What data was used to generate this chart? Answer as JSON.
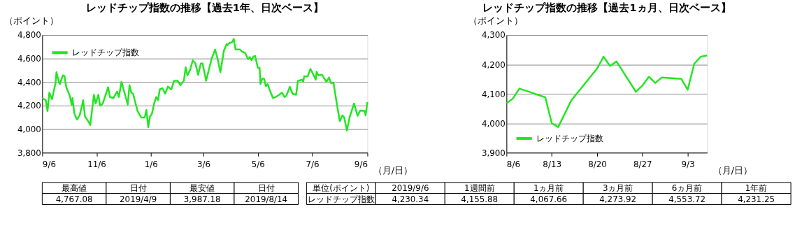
{
  "chart_data": [
    {
      "type": "line",
      "title": "レッドチップ指数の推移【過去1年、日次ベース】",
      "xlabel": "（月/日）",
      "ylabel": "（ポイント）",
      "legend": "top left",
      "grid": "y",
      "xlim": [
        "2018-09-06",
        "2019-09-06"
      ],
      "xticks": [
        {
          "value": "2018-09-06",
          "label": "9/6"
        },
        {
          "value": "2018-11-06",
          "label": "11/6"
        },
        {
          "value": "2019-01-06",
          "label": "1/6"
        },
        {
          "value": "2019-03-06",
          "label": "3/6"
        },
        {
          "value": "2019-05-06",
          "label": "5/6"
        },
        {
          "value": "2019-07-06",
          "label": "7/6"
        },
        {
          "value": "2019-09-06",
          "label": "9/6"
        }
      ],
      "ylim": [
        3800,
        4800
      ],
      "yticks": [
        {
          "value": 3800,
          "label": "3,800"
        },
        {
          "value": 4000,
          "label": "4,000"
        },
        {
          "value": 4200,
          "label": "4,200"
        },
        {
          "value": 4400,
          "label": "4,400"
        },
        {
          "value": 4600,
          "label": "4,600"
        },
        {
          "value": 4800,
          "label": "4,800"
        }
      ],
      "series": [
        {
          "name": "レッドチップ指数",
          "color": "#22e622",
          "x": [
            "2018-09-06",
            "2018-09-10",
            "2018-09-12",
            "2018-09-14",
            "2018-09-17",
            "2018-09-21",
            "2018-09-22",
            "2018-09-25",
            "2018-09-26",
            "2018-09-29",
            "2018-10-01",
            "2018-10-03",
            "2018-10-07",
            "2018-10-09",
            "2018-10-10",
            "2018-10-12",
            "2018-10-15",
            "2018-10-18",
            "2018-10-22",
            "2018-10-24",
            "2018-10-28",
            "2018-10-30",
            "2018-11-03",
            "2018-11-05",
            "2018-11-08",
            "2018-11-10",
            "2018-11-13",
            "2018-11-19",
            "2018-11-21",
            "2018-11-25",
            "2018-11-29",
            "2018-12-01",
            "2018-12-04",
            "2018-12-08",
            "2018-12-11",
            "2018-12-13",
            "2018-12-15",
            "2018-12-17",
            "2018-12-22",
            "2018-12-26",
            "2018-12-30",
            "2019-01-01",
            "2019-01-03",
            "2019-01-05",
            "2019-01-07",
            "2019-01-10",
            "2019-01-12",
            "2019-01-14",
            "2019-01-16",
            "2019-01-19",
            "2019-01-22",
            "2019-01-25",
            "2019-01-29",
            "2019-02-01",
            "2019-02-05",
            "2019-02-08",
            "2019-02-12",
            "2019-02-14",
            "2019-02-16",
            "2019-02-19",
            "2019-02-22",
            "2019-02-25",
            "2019-02-28",
            "2019-03-03",
            "2019-03-05",
            "2019-03-09",
            "2019-03-12",
            "2019-03-15",
            "2019-03-19",
            "2019-03-22",
            "2019-03-25",
            "2019-03-29",
            "2019-04-01",
            "2019-04-02",
            "2019-04-04",
            "2019-04-07",
            "2019-04-09",
            "2019-04-11",
            "2019-04-16",
            "2019-04-18",
            "2019-04-22",
            "2019-04-25",
            "2019-04-27",
            "2019-04-29",
            "2019-05-01",
            "2019-05-03",
            "2019-05-06",
            "2019-05-08",
            "2019-05-09",
            "2019-05-11",
            "2019-05-13",
            "2019-05-15",
            "2019-05-17",
            "2019-05-19",
            "2019-05-23",
            "2019-05-26",
            "2019-05-30",
            "2019-06-02",
            "2019-06-05",
            "2019-06-07",
            "2019-06-11",
            "2019-06-14",
            "2019-06-18",
            "2019-06-20",
            "2019-06-25",
            "2019-06-26",
            "2019-06-27",
            "2019-07-01",
            "2019-07-04",
            "2019-07-06",
            "2019-07-10",
            "2019-07-11",
            "2019-07-13",
            "2019-07-17",
            "2019-07-22",
            "2019-07-25",
            "2019-07-27",
            "2019-07-30",
            "2019-08-03",
            "2019-08-06",
            "2019-08-09",
            "2019-08-11",
            "2019-08-14",
            "2019-08-17",
            "2019-08-22",
            "2019-08-26",
            "2019-08-29",
            "2019-09-03",
            "2019-09-04",
            "2019-09-06"
          ],
          "values": [
            4264,
            4246,
            4154,
            4310,
            4255,
            4393,
            4484,
            4393,
            4383,
            4457,
            4451,
            4356,
            4283,
            4209,
            4264,
            4136,
            4081,
            4117,
            4246,
            4108,
            4062,
            4035,
            4292,
            4218,
            4292,
            4200,
            4218,
            4356,
            4273,
            4264,
            4319,
            4273,
            4402,
            4292,
            4209,
            4374,
            4310,
            4301,
            4154,
            4099,
            4099,
            4163,
            4017,
            4108,
            4127,
            4228,
            4273,
            4246,
            4338,
            4347,
            4301,
            4361,
            4338,
            4411,
            4411,
            4374,
            4411,
            4525,
            4457,
            4503,
            4585,
            4558,
            4462,
            4558,
            4558,
            4411,
            4503,
            4594,
            4677,
            4594,
            4484,
            4668,
            4723,
            4714,
            4732,
            4738,
            4767,
            4677,
            4677,
            4659,
            4646,
            4594,
            4613,
            4585,
            4617,
            4622,
            4521,
            4521,
            4383,
            4429,
            4429,
            4365,
            4383,
            4338,
            4264,
            4273,
            4292,
            4310,
            4273,
            4283,
            4360,
            4301,
            4292,
            4411,
            4420,
            4402,
            4448,
            4448,
            4512,
            4484,
            4420,
            4488,
            4457,
            4462,
            4402,
            4439,
            4393,
            4393,
            4200,
            4068,
            4117,
            4099,
            3987,
            4099,
            4218,
            4114,
            4158,
            4154,
            4117,
            4230
          ]
        }
      ],
      "annotations": [
        "最高値",
        "日付",
        "最安値",
        "日付",
        "4,767.08",
        "2019/4/9",
        "3,987.18",
        "2019/8/14"
      ]
    },
    {
      "type": "line",
      "title": "レッドチップ指数の推移【過去1ヵ月、日次ベース】",
      "xlabel": "（月/日）",
      "ylabel": "（ポイント）",
      "legend": "bottom left",
      "grid": "y",
      "xlim": [
        "2019-08-06",
        "2019-09-06"
      ],
      "xticks": [
        {
          "value": "2019-08-06",
          "label": "8/6"
        },
        {
          "value": "2019-08-13",
          "label": "8/13"
        },
        {
          "value": "2019-08-20",
          "label": "8/20"
        },
        {
          "value": "2019-08-27",
          "label": "8/27"
        },
        {
          "value": "2019-09-03",
          "label": "9/3"
        }
      ],
      "ylim": [
        3900,
        4300
      ],
      "yticks": [
        {
          "value": 3900,
          "label": "3,900"
        },
        {
          "value": 4000,
          "label": "4,000"
        },
        {
          "value": 4100,
          "label": "4,100"
        },
        {
          "value": 4200,
          "label": "4,200"
        },
        {
          "value": 4300,
          "label": "4,300"
        }
      ],
      "series": [
        {
          "name": "レッドチップ指数",
          "color": "#22e622",
          "x": [
            "2019-08-06",
            "2019-08-07",
            "2019-08-08",
            "2019-08-12",
            "2019-08-13",
            "2019-08-14",
            "2019-08-16",
            "2019-08-20",
            "2019-08-21",
            "2019-08-22",
            "2019-08-23",
            "2019-08-26",
            "2019-08-27",
            "2019-08-28",
            "2019-08-29",
            "2019-08-30",
            "2019-09-02",
            "2019-09-03",
            "2019-09-04",
            "2019-09-05",
            "2019-09-06"
          ],
          "values": [
            4067.66,
            4084,
            4118,
            4088,
            4000,
            3987.18,
            4077,
            4186,
            4226,
            4195,
            4210,
            4107,
            4128,
            4158,
            4137,
            4155.88,
            4151,
            4114,
            4202,
            4226,
            4230.34
          ]
        }
      ],
      "annotations": [
        "単位(ポイント)",
        "2019/9/6",
        "1週間前",
        "1ヵ月前",
        "3ヵ月前",
        "6ヵ月前",
        "1年前",
        "レッドチップ指数",
        "4,230.34",
        "4,155.88",
        "4,067.66",
        "4,273.92",
        "4,553.72",
        "4,231.25"
      ]
    }
  ]
}
